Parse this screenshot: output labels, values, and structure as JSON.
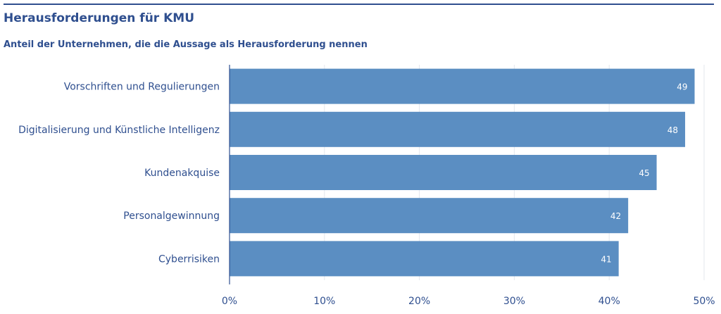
{
  "chart_data": {
    "type": "bar",
    "orientation": "horizontal",
    "title": "Herausforderungen für KMU",
    "subtitle": "Anteil der Unternehmen, die die Aussage als Herausforderung nennen",
    "categories": [
      "Vorschriften und Regulierungen",
      "Digitalisierung und Künstliche Intelligenz",
      "Kundenakquise",
      "Personalgewinnung",
      "Cyberrisiken"
    ],
    "values": [
      49,
      48,
      45,
      42,
      41
    ],
    "value_labels": [
      "49",
      "48",
      "45",
      "42",
      "41"
    ],
    "xlim": [
      0,
      50
    ],
    "xticks": [
      "0%",
      "10%",
      "20%",
      "30%",
      "40%",
      "50%"
    ],
    "grid": true,
    "bar_color": "#5b8ec2",
    "text_color": "#2f4f8f"
  }
}
